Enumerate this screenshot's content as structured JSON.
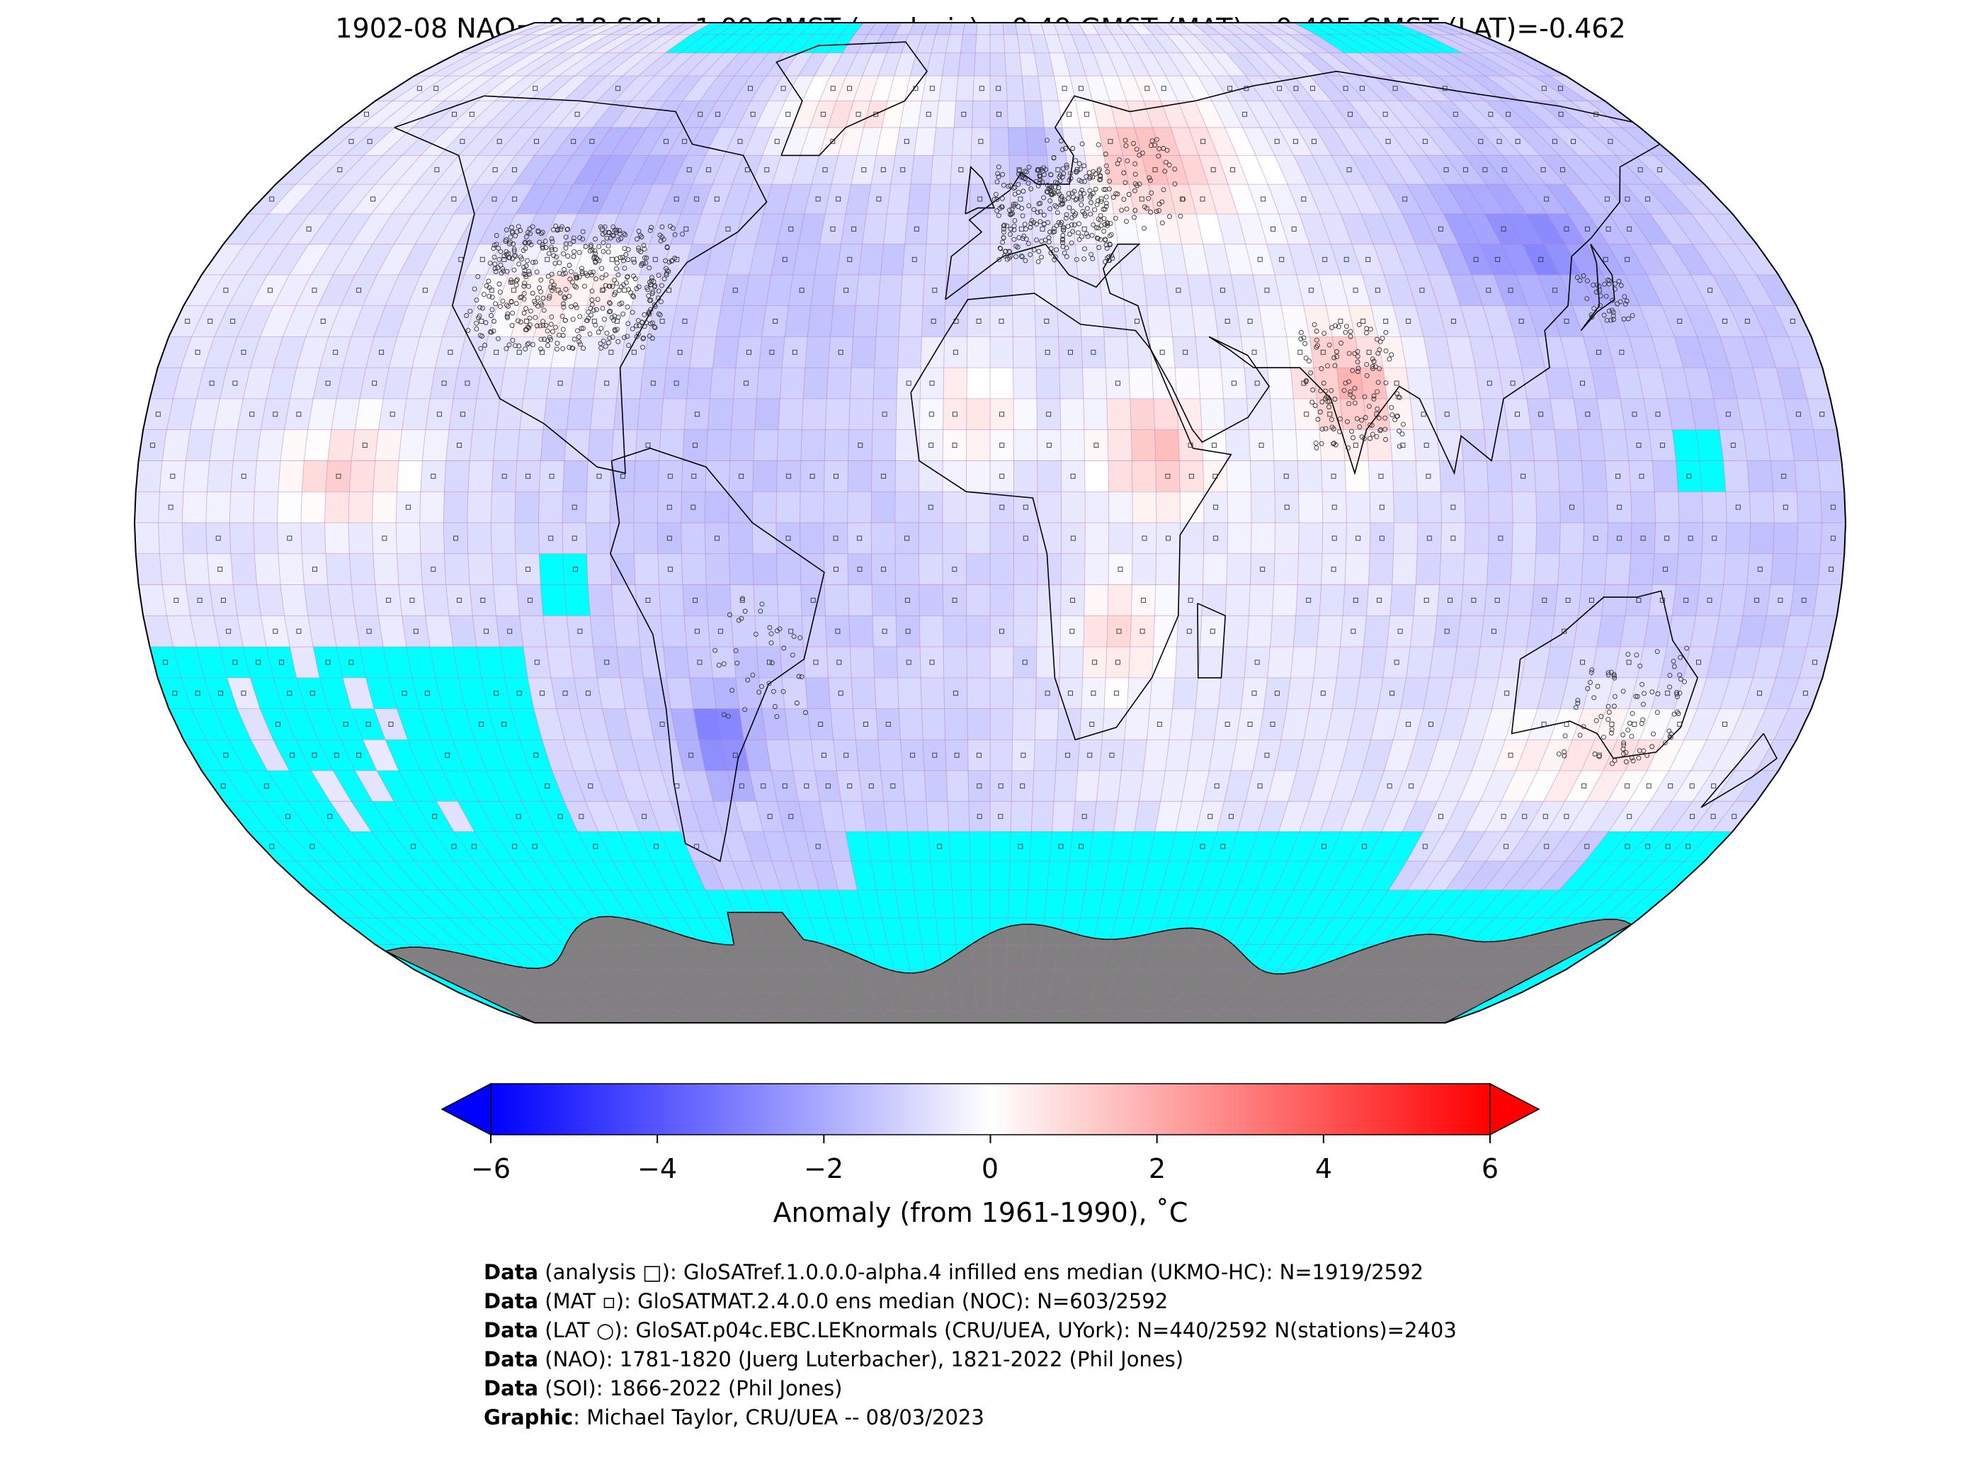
{
  "title": "1902-08 NAO=-0.18 SOI=-1.09 GMST (analysis)=-0.49 GMST (MAT)=-0.495 GMST (LAT)=-0.462",
  "colorbar": {
    "label": "Anomaly (from 1961-1990), ˚C",
    "ticks": [
      "−6",
      "−4",
      "−2",
      "0",
      "2",
      "4",
      "6"
    ],
    "tick_values": [
      -6,
      -4,
      -2,
      0,
      2,
      4,
      6
    ],
    "range": [
      -6,
      6
    ],
    "colors": {
      "min": "#0000ff",
      "mid": "#ffffff",
      "max": "#ff0000"
    }
  },
  "map": {
    "projection": "robinson",
    "no_data_color": "#00ffff",
    "land_mask_color": "#808080",
    "grid_color": "#b070b0"
  },
  "credits": [
    {
      "bold": "Data",
      "text": " (analysis □): GloSATref.1.0.0.0-alpha.4 infilled ens median (UKMO-HC): N=1919/2592"
    },
    {
      "bold": "Data",
      "text": " (MAT ▫): GloSATMAT.2.4.0.0 ens median (NOC): N=603/2592"
    },
    {
      "bold": "Data",
      "text": " (LAT ○): GloSAT.p04c.EBC.LEKnormals (CRU/UEA, UYork): N=440/2592 N(stations)=2403"
    },
    {
      "bold": "Data",
      "text": " (NAO): 1781-1820 (Juerg Luterbacher), 1821-2022 (Phil Jones)"
    },
    {
      "bold": "Data",
      "text": " (SOI): 1866-2022 (Phil Jones)"
    },
    {
      "bold": "Graphic",
      "text": ": Michael Taylor, CRU/UEA -- 08/03/2023"
    }
  ]
}
